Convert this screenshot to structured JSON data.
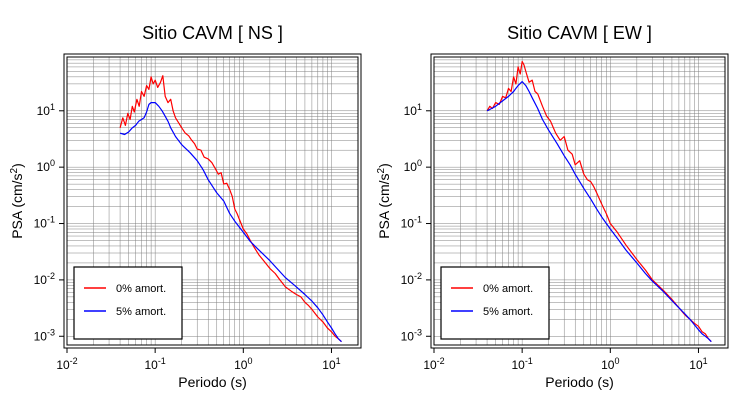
{
  "chart_data": [
    {
      "type": "line",
      "title": "Sitio CAVM [ NS ]",
      "xlabel": "Periodo (s)",
      "ylabel_main": "PSA (cm/s",
      "ylabel_sup": "2",
      "ylabel_tail": ")",
      "x_scale": "log",
      "y_scale": "log",
      "xlim": [
        0.01,
        20
      ],
      "ylim": [
        0.0007,
        90
      ],
      "grid": true,
      "legend_position": "bottom-left",
      "x_ticks": [
        {
          "value": 0.01,
          "base": "10",
          "exp": "-2"
        },
        {
          "value": 0.1,
          "base": "10",
          "exp": "-1"
        },
        {
          "value": 1,
          "base": "10",
          "exp": "0"
        },
        {
          "value": 10,
          "base": "10",
          "exp": "1"
        }
      ],
      "y_ticks": [
        {
          "value": 0.001,
          "base": "10",
          "exp": "-3"
        },
        {
          "value": 0.01,
          "base": "10",
          "exp": "-2"
        },
        {
          "value": 0.1,
          "base": "10",
          "exp": "-1"
        },
        {
          "value": 1,
          "base": "10",
          "exp": "0"
        },
        {
          "value": 10,
          "base": "10",
          "exp": "1"
        }
      ],
      "series": [
        {
          "name": "0% amort.",
          "color": "#ff0000",
          "x": [
            0.04,
            0.043,
            0.046,
            0.049,
            0.052,
            0.055,
            0.058,
            0.062,
            0.066,
            0.07,
            0.075,
            0.08,
            0.085,
            0.09,
            0.095,
            0.1,
            0.107,
            0.115,
            0.122,
            0.13,
            0.14,
            0.15,
            0.16,
            0.17,
            0.18,
            0.2,
            0.22,
            0.24,
            0.26,
            0.28,
            0.3,
            0.33,
            0.36,
            0.4,
            0.44,
            0.48,
            0.52,
            0.56,
            0.6,
            0.65,
            0.7,
            0.75,
            0.8,
            0.85,
            0.9,
            1.0,
            1.1,
            1.2,
            1.3,
            1.5,
            1.7,
            2.0,
            2.3,
            2.6,
            3.0,
            3.5,
            4.0,
            4.5,
            5.0,
            5.5,
            6.0,
            7.0,
            8.0,
            9.0,
            10.0,
            11.0,
            12.0,
            13.0
          ],
          "y": [
            5.0,
            7.5,
            5.5,
            9.0,
            7.0,
            12.0,
            9.5,
            16.0,
            12.0,
            22.0,
            18.0,
            28.0,
            24.0,
            40.0,
            30.0,
            35.0,
            26.0,
            32.0,
            42.0,
            18.0,
            14.0,
            16.0,
            10.0,
            7.5,
            6.5,
            5.0,
            4.0,
            3.6,
            3.0,
            2.6,
            2.1,
            2.0,
            1.5,
            1.4,
            1.2,
            0.95,
            0.75,
            0.8,
            0.5,
            0.52,
            0.4,
            0.3,
            0.18,
            0.15,
            0.12,
            0.08,
            0.065,
            0.05,
            0.04,
            0.028,
            0.022,
            0.016,
            0.013,
            0.01,
            0.0075,
            0.0063,
            0.0055,
            0.005,
            0.004,
            0.0035,
            0.003,
            0.0022,
            0.0018,
            0.0014,
            0.0012,
            0.001,
            0.0009,
            0.0008
          ]
        },
        {
          "name": "5% amort.",
          "color": "#0000ff",
          "x": [
            0.04,
            0.045,
            0.05,
            0.055,
            0.06,
            0.065,
            0.07,
            0.075,
            0.08,
            0.085,
            0.09,
            0.1,
            0.11,
            0.12,
            0.13,
            0.14,
            0.15,
            0.17,
            0.2,
            0.25,
            0.3,
            0.35,
            0.4,
            0.5,
            0.6,
            0.7,
            0.8,
            1.0,
            1.2,
            1.5,
            2.0,
            2.5,
            3.0,
            4.0,
            5.0,
            6.0,
            7.0,
            8.0,
            9.0,
            10.0,
            11.0,
            12.0,
            13.0
          ],
          "y": [
            4.0,
            3.8,
            4.2,
            5.0,
            5.5,
            6.5,
            7.0,
            7.5,
            9.5,
            13.0,
            14.0,
            14.0,
            12.0,
            10.0,
            8.0,
            6.5,
            5.0,
            3.5,
            2.5,
            1.8,
            1.3,
            0.9,
            0.6,
            0.35,
            0.25,
            0.15,
            0.11,
            0.07,
            0.048,
            0.034,
            0.022,
            0.015,
            0.011,
            0.0075,
            0.0055,
            0.0042,
            0.0032,
            0.0024,
            0.0018,
            0.0014,
            0.0011,
            0.0009,
            0.0008
          ]
        }
      ]
    },
    {
      "type": "line",
      "title": "Sitio CAVM [ EW ]",
      "xlabel": "Periodo (s)",
      "ylabel_main": "PSA (cm/s",
      "ylabel_sup": "2",
      "ylabel_tail": ")",
      "x_scale": "log",
      "y_scale": "log",
      "xlim": [
        0.01,
        20
      ],
      "ylim": [
        0.0007,
        90
      ],
      "grid": true,
      "legend_position": "bottom-left",
      "x_ticks": [
        {
          "value": 0.01,
          "base": "10",
          "exp": "-2"
        },
        {
          "value": 0.1,
          "base": "10",
          "exp": "-1"
        },
        {
          "value": 1,
          "base": "10",
          "exp": "0"
        },
        {
          "value": 10,
          "base": "10",
          "exp": "1"
        }
      ],
      "y_ticks": [
        {
          "value": 0.001,
          "base": "10",
          "exp": "-3"
        },
        {
          "value": 0.01,
          "base": "10",
          "exp": "-2"
        },
        {
          "value": 0.1,
          "base": "10",
          "exp": "-1"
        },
        {
          "value": 1,
          "base": "10",
          "exp": "0"
        },
        {
          "value": 10,
          "base": "10",
          "exp": "1"
        }
      ],
      "series": [
        {
          "name": "0% amort.",
          "color": "#ff0000",
          "x": [
            0.04,
            0.043,
            0.046,
            0.05,
            0.055,
            0.06,
            0.065,
            0.07,
            0.075,
            0.08,
            0.085,
            0.09,
            0.095,
            0.1,
            0.105,
            0.11,
            0.12,
            0.13,
            0.14,
            0.15,
            0.17,
            0.19,
            0.21,
            0.24,
            0.27,
            0.3,
            0.33,
            0.37,
            0.4,
            0.45,
            0.5,
            0.55,
            0.6,
            0.65,
            0.7,
            0.8,
            0.9,
            1.0,
            1.2,
            1.5,
            2.0,
            2.5,
            3.0,
            4.0,
            5.0,
            6.0,
            7.0,
            8.0,
            9.0,
            10.0,
            11.0,
            12.0,
            13.0,
            14.0
          ],
          "y": [
            10.0,
            12.0,
            11.0,
            14.0,
            13.0,
            18.0,
            17.0,
            25.0,
            22.0,
            40.0,
            30.0,
            60.0,
            45.0,
            75.0,
            65.0,
            50.0,
            32.0,
            35.0,
            22.0,
            20.0,
            12.0,
            8.0,
            6.5,
            4.0,
            3.0,
            3.5,
            2.0,
            1.7,
            1.1,
            1.3,
            0.75,
            0.6,
            0.55,
            0.45,
            0.35,
            0.22,
            0.15,
            0.1,
            0.07,
            0.042,
            0.023,
            0.015,
            0.01,
            0.0065,
            0.0045,
            0.0032,
            0.0024,
            0.002,
            0.0017,
            0.0015,
            0.0012,
            0.0011,
            0.0009,
            0.0008
          ]
        },
        {
          "name": "5% amort.",
          "color": "#0000ff",
          "x": [
            0.04,
            0.045,
            0.05,
            0.055,
            0.06,
            0.065,
            0.07,
            0.075,
            0.08,
            0.085,
            0.09,
            0.1,
            0.11,
            0.12,
            0.13,
            0.15,
            0.17,
            0.2,
            0.25,
            0.3,
            0.35,
            0.4,
            0.5,
            0.6,
            0.7,
            0.8,
            1.0,
            1.2,
            1.5,
            2.0,
            2.5,
            3.0,
            4.0,
            5.0,
            6.0,
            7.0,
            8.0,
            9.0,
            10.0,
            11.0,
            12.0,
            13.0,
            14.0
          ],
          "y": [
            10.0,
            11.0,
            12.0,
            13.5,
            15.0,
            16.5,
            18.0,
            20.0,
            22.0,
            25.0,
            28.0,
            33.0,
            28.0,
            22.0,
            17.0,
            11.0,
            7.0,
            4.5,
            2.6,
            1.6,
            1.1,
            0.75,
            0.42,
            0.27,
            0.18,
            0.13,
            0.08,
            0.055,
            0.034,
            0.02,
            0.013,
            0.0095,
            0.0062,
            0.0043,
            0.0032,
            0.0025,
            0.002,
            0.0016,
            0.0013,
            0.0011,
            0.001,
            0.0009,
            0.0008
          ]
        }
      ]
    }
  ]
}
